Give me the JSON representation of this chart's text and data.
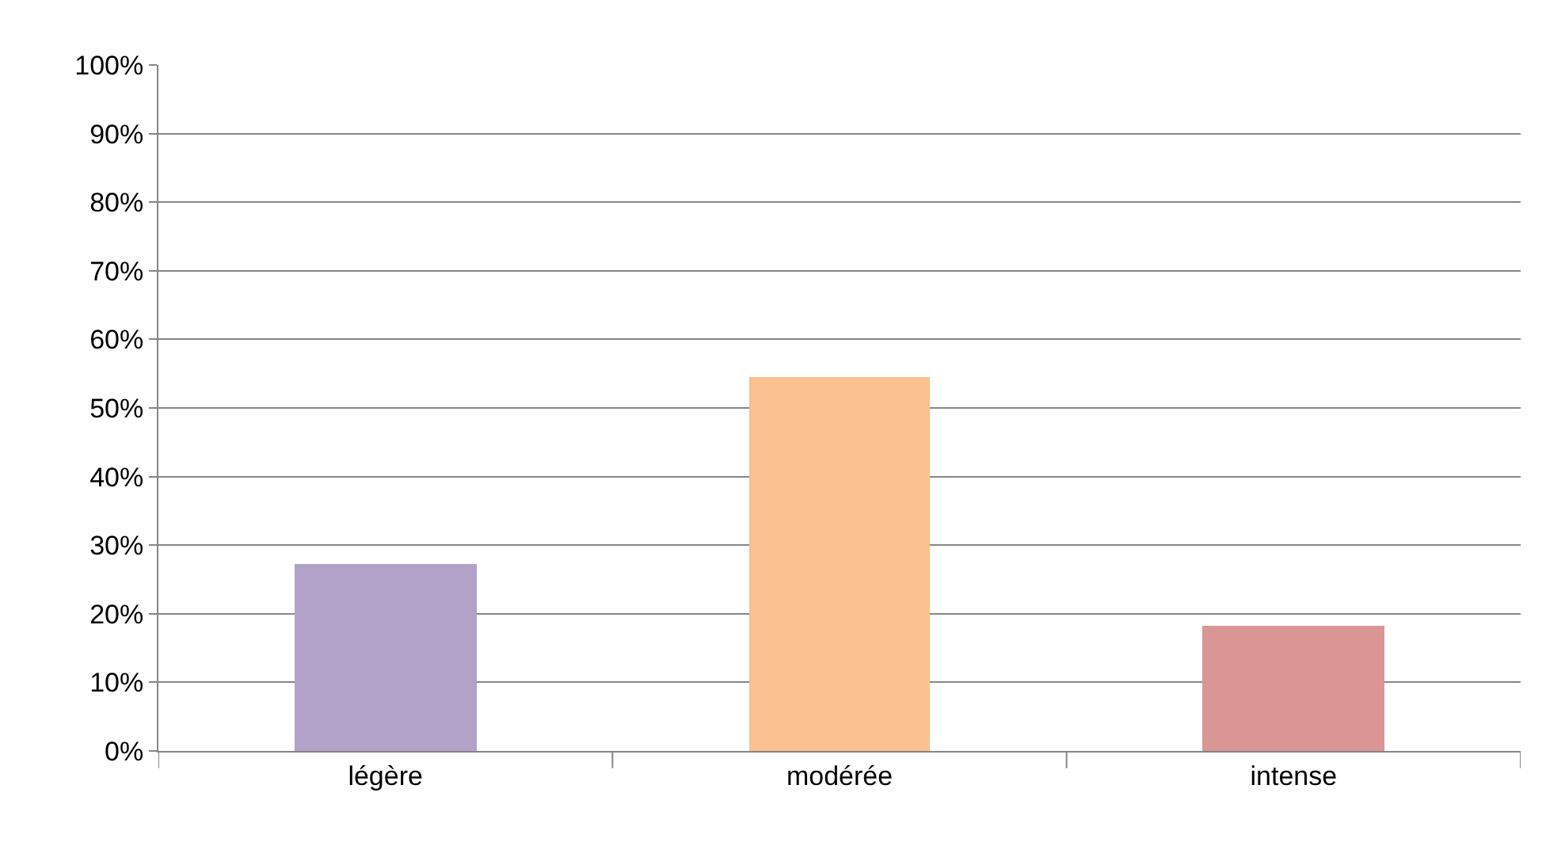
{
  "chart_data": {
    "type": "bar",
    "categories": [
      "légère",
      "modérée",
      "intense"
    ],
    "values": [
      27.3,
      54.5,
      18.2
    ],
    "colors": [
      "#b3a2c7",
      "#fac090",
      "#d99694"
    ],
    "ylim": [
      0,
      100
    ],
    "yticks": [
      {
        "value": 0,
        "label": "0%"
      },
      {
        "value": 10,
        "label": "10%"
      },
      {
        "value": 20,
        "label": "20%"
      },
      {
        "value": 30,
        "label": "30%"
      },
      {
        "value": 40,
        "label": "40%"
      },
      {
        "value": 50,
        "label": "50%"
      },
      {
        "value": 60,
        "label": "60%"
      },
      {
        "value": 70,
        "label": "70%"
      },
      {
        "value": 80,
        "label": "80%"
      },
      {
        "value": 90,
        "label": "90%"
      },
      {
        "value": 100,
        "label": "100%"
      }
    ],
    "grid": "y"
  }
}
